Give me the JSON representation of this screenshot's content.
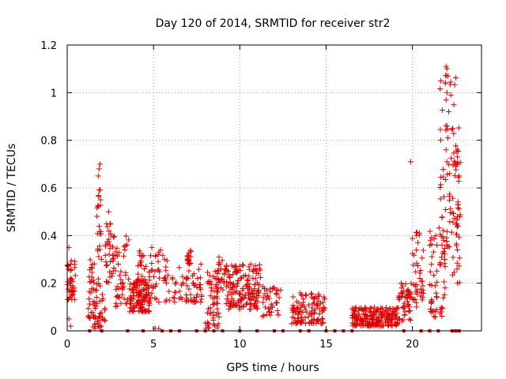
{
  "chart_data": {
    "type": "scatter",
    "title": "Day 120 of 2014, SRMTID for receiver str2",
    "xlabel": "GPS time / hours",
    "ylabel": "SRMTID / TECUs",
    "xlim": [
      0,
      24
    ],
    "ylim": [
      0,
      1.2
    ],
    "x_ticks": [
      "0",
      "5",
      "10",
      "15",
      "20"
    ],
    "y_ticks": [
      "0",
      "0.2",
      "0.4",
      "0.6",
      "0.8",
      "1",
      "1.2"
    ],
    "grid": true,
    "marker": "+",
    "series_color": "#e00000",
    "clusters": [
      {
        "x": [
          0.0,
          0.5
        ],
        "y": [
          0.13,
          0.3
        ],
        "n": 40
      },
      {
        "x": [
          1.2,
          1.6
        ],
        "y": [
          0.05,
          0.3
        ],
        "n": 30
      },
      {
        "x": [
          1.5,
          2.2
        ],
        "y": [
          0.01,
          0.22
        ],
        "n": 40
      },
      {
        "x": [
          1.7,
          2.0
        ],
        "y": [
          0.3,
          0.62
        ],
        "n": 22
      },
      {
        "x": [
          2.2,
          2.7
        ],
        "y": [
          0.2,
          0.48
        ],
        "n": 35
      },
      {
        "x": [
          2.7,
          3.6
        ],
        "y": [
          0.1,
          0.4
        ],
        "n": 45
      },
      {
        "x": [
          3.6,
          4.8
        ],
        "y": [
          0.08,
          0.22
        ],
        "n": 110
      },
      {
        "x": [
          4.0,
          6.0
        ],
        "y": [
          0.12,
          0.34
        ],
        "n": 70
      },
      {
        "x": [
          6.0,
          7.8
        ],
        "y": [
          0.12,
          0.28
        ],
        "n": 60
      },
      {
        "x": [
          6.9,
          7.2
        ],
        "y": [
          0.28,
          0.34
        ],
        "n": 18
      },
      {
        "x": [
          8.0,
          8.8
        ],
        "y": [
          0.01,
          0.25
        ],
        "n": 50
      },
      {
        "x": [
          8.6,
          9.2
        ],
        "y": [
          0.16,
          0.32
        ],
        "n": 30
      },
      {
        "x": [
          9.2,
          11.2
        ],
        "y": [
          0.09,
          0.28
        ],
        "n": 160
      },
      {
        "x": [
          11.3,
          12.4
        ],
        "y": [
          0.06,
          0.19
        ],
        "n": 40
      },
      {
        "x": [
          13.0,
          15.0
        ],
        "y": [
          0.03,
          0.16
        ],
        "n": 110
      },
      {
        "x": [
          16.5,
          19.2
        ],
        "y": [
          0.02,
          0.1
        ],
        "n": 210
      },
      {
        "x": [
          19.2,
          20.0
        ],
        "y": [
          0.04,
          0.2
        ],
        "n": 50
      },
      {
        "x": [
          20.0,
          20.7
        ],
        "y": [
          0.1,
          0.42
        ],
        "n": 40
      },
      {
        "x": [
          21.0,
          21.9
        ],
        "y": [
          0.05,
          0.45
        ],
        "n": 60
      },
      {
        "x": [
          21.6,
          22.7
        ],
        "y": [
          0.35,
          1.1
        ],
        "n": 70
      },
      {
        "x": [
          22.3,
          22.8
        ],
        "y": [
          0.2,
          0.77
        ],
        "n": 30
      }
    ],
    "points": [
      [
        0.1,
        0.35
      ],
      [
        0.2,
        0.28
      ],
      [
        0.1,
        0.05
      ],
      [
        0.2,
        0.02
      ],
      [
        1.6,
        0.01
      ],
      [
        1.9,
        0.7
      ],
      [
        1.85,
        0.68
      ],
      [
        1.8,
        0.65
      ],
      [
        2.4,
        0.5
      ],
      [
        2.5,
        0.45
      ],
      [
        4.9,
        0.35
      ],
      [
        5.1,
        0.01
      ],
      [
        5.3,
        0.01
      ],
      [
        8.7,
        0.02
      ],
      [
        19.9,
        0.71
      ],
      [
        20.4,
        0.41
      ],
      [
        21.95,
        1.11
      ],
      [
        22.0,
        1.1
      ],
      [
        22.05,
        1.07
      ],
      [
        21.9,
        1.04
      ],
      [
        22.0,
        1.0
      ],
      [
        21.95,
        0.97
      ],
      [
        22.1,
        0.92
      ],
      [
        22.0,
        0.86
      ],
      [
        22.05,
        0.81
      ],
      [
        21.95,
        0.76
      ],
      [
        22.6,
        0.76
      ],
      [
        22.6,
        0.73
      ],
      [
        22.0,
        0.71
      ],
      [
        22.6,
        0.7
      ],
      [
        22.15,
        0.66
      ],
      [
        22.6,
        0.48
      ],
      [
        22.6,
        0.34
      ],
      [
        22.6,
        0.2
      ]
    ],
    "zero_points": [
      1.3,
      2.0,
      3.5,
      4.4,
      5.5,
      6.0,
      6.5,
      7.5,
      8.0,
      8.5,
      9.0,
      10.0,
      11.0,
      12.0,
      12.5,
      13.5,
      14.0,
      15.0,
      15.5,
      16.0,
      16.5,
      19.5,
      20.5,
      21.0,
      21.5,
      22.3,
      22.5,
      22.7
    ]
  }
}
